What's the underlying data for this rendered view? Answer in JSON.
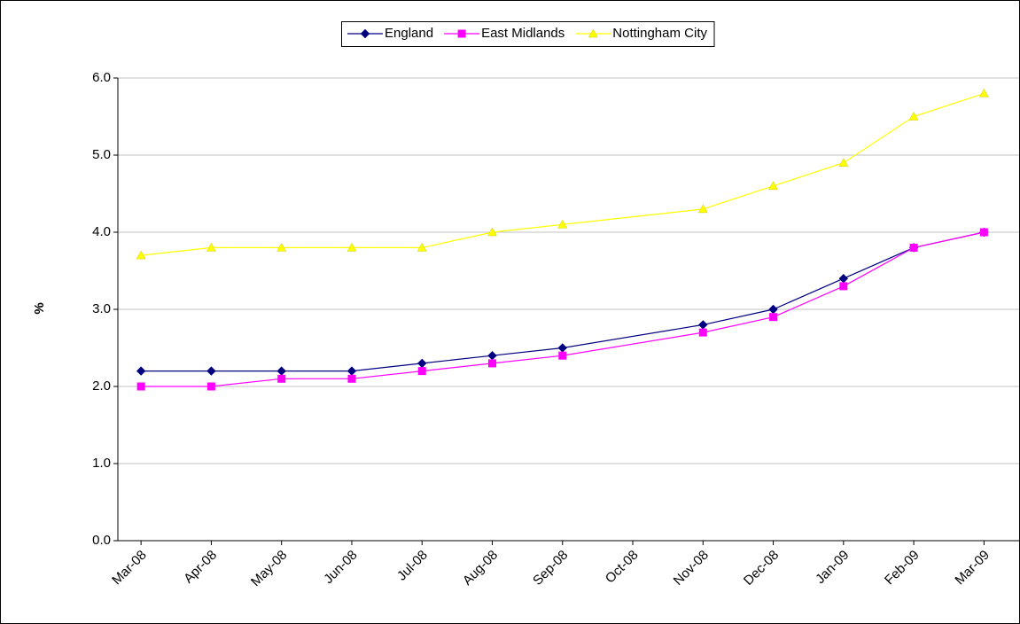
{
  "chart_data": {
    "type": "line",
    "y_label": "%",
    "x": [
      0,
      1,
      2,
      3,
      4,
      5,
      6,
      8,
      9,
      10,
      11,
      12
    ],
    "xlim": [
      -0.33,
      12.5
    ],
    "xticks": [
      {
        "value": 0,
        "label": "Mar-08"
      },
      {
        "value": 1,
        "label": "Apr-08"
      },
      {
        "value": 2,
        "label": "May-08"
      },
      {
        "value": 3,
        "label": "Jun-08"
      },
      {
        "value": 4,
        "label": "Jul-08"
      },
      {
        "value": 5,
        "label": "Aug-08"
      },
      {
        "value": 6,
        "label": "Sep-08"
      },
      {
        "value": 7,
        "label": "Oct-08"
      },
      {
        "value": 8,
        "label": "Nov-08"
      },
      {
        "value": 9,
        "label": "Dec-08"
      },
      {
        "value": 10,
        "label": "Jan-09"
      },
      {
        "value": 11,
        "label": "Feb-09"
      },
      {
        "value": 12,
        "label": "Mar-09"
      }
    ],
    "ylim": [
      0,
      6
    ],
    "yticks": [
      {
        "value": 0,
        "label": "0.0"
      },
      {
        "value": 1,
        "label": "1.0"
      },
      {
        "value": 2,
        "label": "2.0"
      },
      {
        "value": 3,
        "label": "3.0"
      },
      {
        "value": 4,
        "label": "4.0"
      },
      {
        "value": 5,
        "label": "5.0"
      },
      {
        "value": 6,
        "label": "6.0"
      }
    ],
    "grid": true,
    "legend": "top",
    "series": [
      {
        "name": "England",
        "color": "#000080",
        "marker": "diamond",
        "values": [
          2.2,
          2.2,
          2.2,
          2.2,
          2.3,
          2.4,
          2.5,
          2.8,
          3.0,
          3.4,
          3.8,
          4.0
        ]
      },
      {
        "name": "East Midlands",
        "color": "#ff00ff",
        "marker": "square",
        "values": [
          2.0,
          2.0,
          2.1,
          2.1,
          2.2,
          2.3,
          2.4,
          2.7,
          2.9,
          3.3,
          3.8,
          4.0
        ]
      },
      {
        "name": "Nottingham City",
        "color": "#ffff00",
        "marker": "triangle",
        "values": [
          3.7,
          3.8,
          3.8,
          3.8,
          3.8,
          4.0,
          4.1,
          4.3,
          4.6,
          4.9,
          5.5,
          5.8
        ]
      }
    ]
  }
}
